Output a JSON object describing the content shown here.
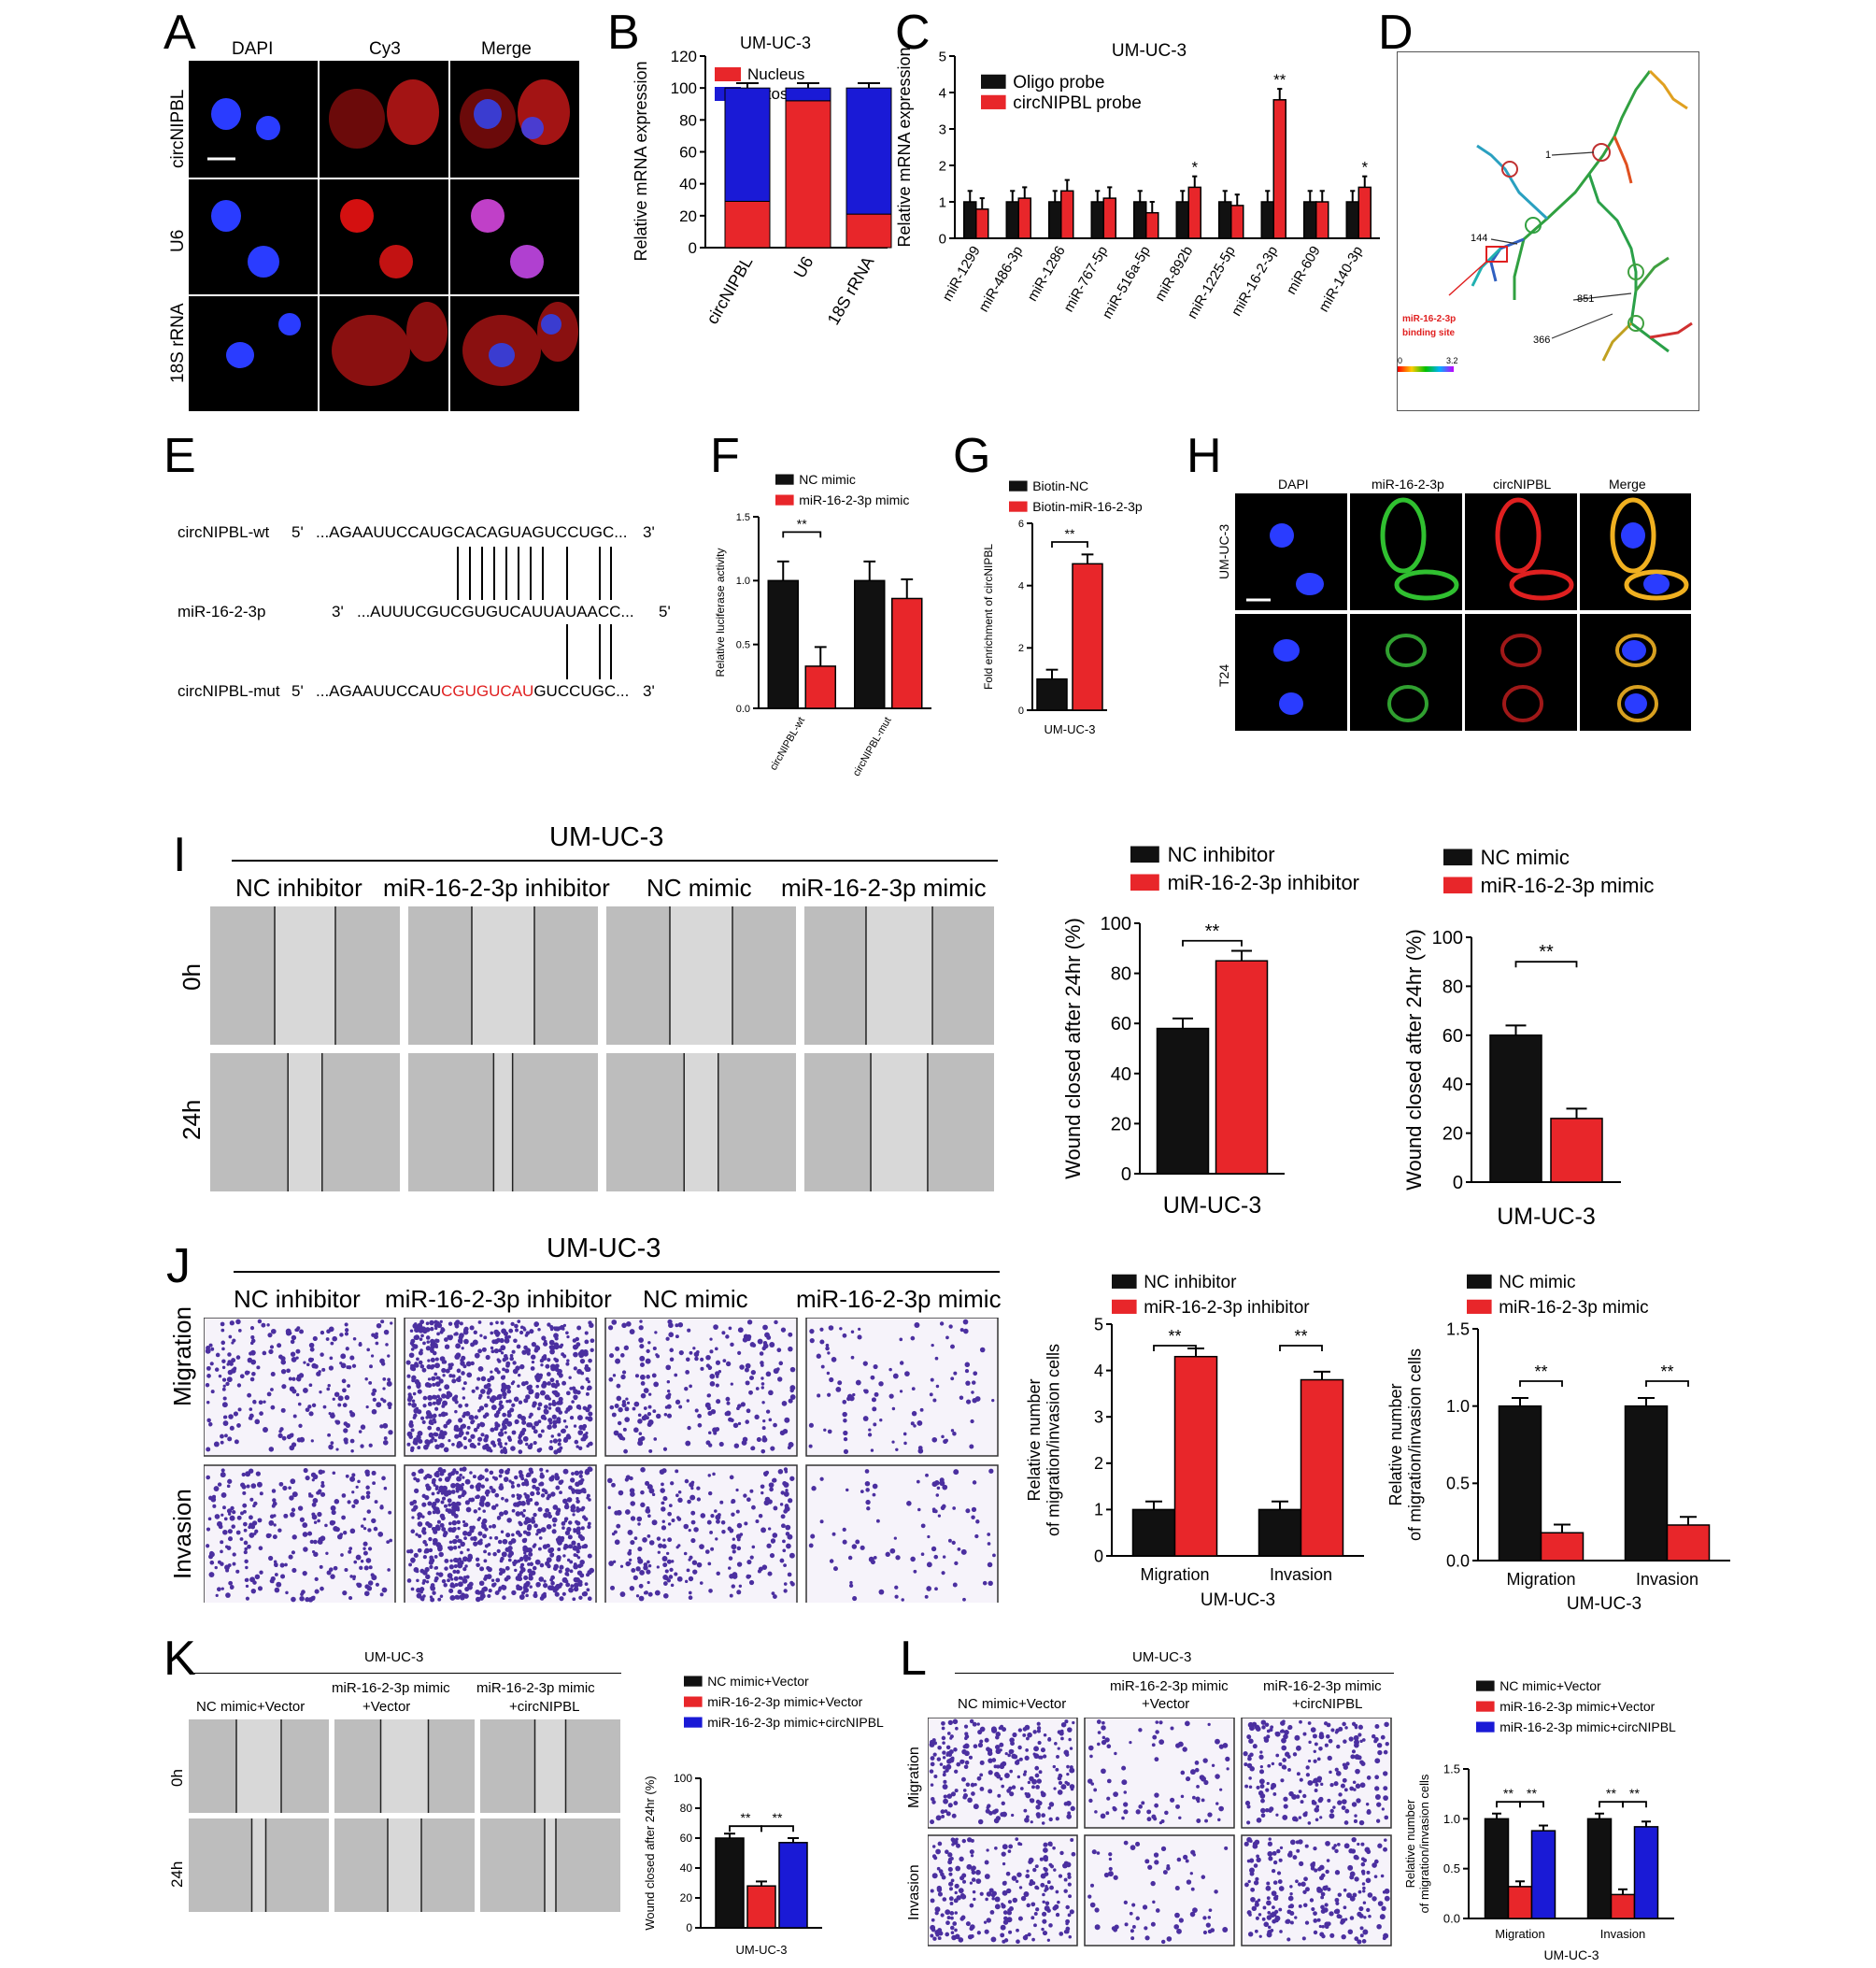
{
  "panels": {
    "A": {
      "letter": "A",
      "cols": [
        "DAPI",
        "Cy3",
        "Merge"
      ],
      "rows": [
        "circNIPBL",
        "U6",
        "18S rRNA"
      ]
    },
    "B": {
      "letter": "B"
    },
    "C": {
      "letter": "C"
    },
    "D": {
      "letter": "D",
      "labels": [
        "1",
        "144",
        "851",
        "366"
      ],
      "site": "miR-16-2-3p",
      "site2": "binding site",
      "scale_min": "0",
      "scale_max": "3.2"
    },
    "E": {
      "letter": "E",
      "wt_name": "circNIPBL-wt",
      "wt_5": "5'",
      "wt_seq": "...AGAAUUCCAUGCACAGUAGUCCUGC...",
      "wt_3": "3'",
      "mir_name": "miR-16-2-3p",
      "mir_3": "3'",
      "mir_seq": "...AUUUCGUCGUGUCAUUAUAACC...",
      "mir_5": "5'",
      "mut_name": "circNIPBL-mut",
      "mut_5": "5'",
      "mut_pre": "...AGAAUUCCAU",
      "mut_red": "CGUGUCAU",
      "mut_post": "GUCCUGC...",
      "mut_3": "3'"
    },
    "F": {
      "letter": "F"
    },
    "G": {
      "letter": "G"
    },
    "H": {
      "letter": "H",
      "cols": [
        "DAPI",
        "miR-16-2-3p",
        "circNIPBL",
        "Merge"
      ],
      "rows": [
        "UM-UC-3",
        "T24"
      ]
    },
    "I": {
      "letter": "I",
      "cell": "UM-UC-3",
      "groups": [
        "NC inhibitor",
        "miR-16-2-3p inhibitor",
        "NC mimic",
        "miR-16-2-3p mimic"
      ],
      "rows": [
        "0h",
        "24h"
      ]
    },
    "J": {
      "letter": "J",
      "cell": "UM-UC-3",
      "groups": [
        "NC inhibitor",
        "miR-16-2-3p inhibitor",
        "NC mimic",
        "miR-16-2-3p mimic"
      ],
      "rows": [
        "Migration",
        "Invasion"
      ]
    },
    "K": {
      "letter": "K",
      "cell": "UM-UC-3",
      "groups": [
        "NC mimic+Vector",
        "miR-16-2-3p mimic",
        "+Vector",
        "miR-16-2-3p mimic",
        "+circNIPBL"
      ],
      "rows": [
        "0h",
        "24h"
      ]
    },
    "L": {
      "letter": "L",
      "cell": "UM-UC-3",
      "groups": [
        "NC mimic+Vector",
        "miR-16-2-3p mimic",
        "+Vector",
        "miR-16-2-3p mimic",
        "+circNIPBL"
      ],
      "rows": [
        "Migration",
        "Invasion"
      ]
    }
  },
  "chart_data": [
    {
      "id": "B",
      "type": "bar",
      "stacked": true,
      "title": "UM-UC-3",
      "ylabel": "Relative mRNA expression",
      "categories": [
        "circNIPBL",
        "U6",
        "18S rRNA"
      ],
      "series": [
        {
          "name": "Nucleus",
          "values": [
            29,
            92,
            21
          ],
          "color": "#e8262a"
        },
        {
          "name": "Cytosol",
          "values": [
            71,
            8,
            79
          ],
          "color": "#1a1ad6"
        }
      ],
      "ylim": [
        0,
        120
      ],
      "yticks": [
        "0",
        "20",
        "40",
        "60",
        "80",
        "100",
        "120"
      ]
    },
    {
      "id": "C",
      "type": "bar",
      "title": "UM-UC-3",
      "ylabel": "Relative mRNA expression",
      "categories": [
        "miR-1299",
        "miR-486-3p",
        "miR-1286",
        "miR-767-5p",
        "miR-516a-5p",
        "miR-892b",
        "miR-1225-5p",
        "miR-16-2-3p",
        "miR-609",
        "miR-140-3p"
      ],
      "series": [
        {
          "name": "Oligo probe",
          "values": [
            1.0,
            1.0,
            1.0,
            1.0,
            1.0,
            1.0,
            1.0,
            1.0,
            1.0,
            1.0
          ],
          "color": "#111"
        },
        {
          "name": "circNIPBL probe",
          "values": [
            0.8,
            1.1,
            1.3,
            1.1,
            0.7,
            1.4,
            0.9,
            3.8,
            1.0,
            1.4
          ],
          "color": "#e8262a"
        }
      ],
      "ylim": [
        0,
        5
      ],
      "yticks": [
        "0",
        "1",
        "2",
        "3",
        "4",
        "5"
      ],
      "sig": [
        "",
        "",
        "",
        "",
        "",
        "*",
        "",
        "**",
        "",
        "*"
      ]
    },
    {
      "id": "F",
      "type": "bar",
      "ylabel": "Relative luciferase activity",
      "categories": [
        "circNIPBL-wt",
        "circNIPBL-mut"
      ],
      "series": [
        {
          "name": "NC mimic",
          "values": [
            1.0,
            1.0
          ],
          "color": "#111"
        },
        {
          "name": "miR-16-2-3p mimic",
          "values": [
            0.33,
            0.86
          ],
          "color": "#e8262a"
        }
      ],
      "ylim": [
        0,
        1.5
      ],
      "yticks": [
        "0.0",
        "0.5",
        "1.0",
        "1.5"
      ],
      "sig": "**"
    },
    {
      "id": "G",
      "type": "bar",
      "ylabel": "Fold enrichment of circNIPBL",
      "xlabel": "UM-UC-3",
      "categories": [
        "UM-UC-3"
      ],
      "series": [
        {
          "name": "Biotin-NC",
          "values": [
            1.0
          ],
          "color": "#111"
        },
        {
          "name": "Biotin-miR-16-2-3p",
          "values": [
            4.7
          ],
          "color": "#e8262a"
        }
      ],
      "ylim": [
        0,
        6
      ],
      "yticks": [
        "0",
        "2",
        "4",
        "6"
      ],
      "sig": "**"
    },
    {
      "id": "I1",
      "type": "bar",
      "ylabel": "Wound closed after 24hr (%)",
      "xlabel": "UM-UC-3",
      "series": [
        {
          "name": "NC inhibitor",
          "values": [
            58
          ],
          "color": "#111"
        },
        {
          "name": "miR-16-2-3p inhibitor",
          "values": [
            85
          ],
          "color": "#e8262a"
        }
      ],
      "ylim": [
        0,
        100
      ],
      "yticks": [
        "0",
        "20",
        "40",
        "60",
        "80",
        "100"
      ],
      "sig": "**"
    },
    {
      "id": "I2",
      "type": "bar",
      "ylabel": "Wound closed after 24hr (%)",
      "xlabel": "UM-UC-3",
      "series": [
        {
          "name": "NC mimic",
          "values": [
            60
          ],
          "color": "#111"
        },
        {
          "name": "miR-16-2-3p mimic",
          "values": [
            26
          ],
          "color": "#e8262a"
        }
      ],
      "ylim": [
        0,
        100
      ],
      "yticks": [
        "0",
        "20",
        "40",
        "60",
        "80",
        "100"
      ],
      "sig": "**"
    },
    {
      "id": "J1",
      "type": "bar",
      "ylabel": "Relative number of migration/invasion cells",
      "xlabel": "UM-UC-3",
      "categories": [
        "Migration",
        "Invasion"
      ],
      "series": [
        {
          "name": "NC inhibitor",
          "values": [
            1.0,
            1.0
          ],
          "color": "#111"
        },
        {
          "name": "miR-16-2-3p inhibitor",
          "values": [
            4.3,
            3.8
          ],
          "color": "#e8262a"
        }
      ],
      "ylim": [
        0,
        5
      ],
      "yticks": [
        "0",
        "1",
        "2",
        "3",
        "4",
        "5"
      ],
      "sig": "**"
    },
    {
      "id": "J2",
      "type": "bar",
      "ylabel": "Relative number of migration/invasion cells",
      "xlabel": "UM-UC-3",
      "categories": [
        "Migration",
        "Invasion"
      ],
      "series": [
        {
          "name": "NC mimic",
          "values": [
            1.0,
            1.0
          ],
          "color": "#111"
        },
        {
          "name": "miR-16-2-3p mimic",
          "values": [
            0.18,
            0.23
          ],
          "color": "#e8262a"
        }
      ],
      "ylim": [
        0,
        1.5
      ],
      "yticks": [
        "0.0",
        "0.5",
        "1.0",
        "1.5"
      ],
      "sig": "**"
    },
    {
      "id": "K",
      "type": "bar",
      "ylabel": "Wound closed after 24hr (%)",
      "xlabel": "UM-UC-3",
      "series": [
        {
          "name": "NC mimic+Vector",
          "values": [
            60
          ],
          "color": "#111"
        },
        {
          "name": "miR-16-2-3p mimic+Vector",
          "values": [
            28
          ],
          "color": "#e8262a"
        },
        {
          "name": "miR-16-2-3p mimic+circNIPBL",
          "values": [
            57
          ],
          "color": "#1a1ad6"
        }
      ],
      "ylim": [
        0,
        100
      ],
      "yticks": [
        "0",
        "20",
        "40",
        "60",
        "80",
        "100"
      ],
      "sig": "**"
    },
    {
      "id": "L",
      "type": "bar",
      "ylabel": "Relative number of migration/invasion cells",
      "xlabel": "UM-UC-3",
      "categories": [
        "Migration",
        "Invasion"
      ],
      "series": [
        {
          "name": "NC mimic+Vector",
          "values": [
            1.0,
            1.0
          ],
          "color": "#111"
        },
        {
          "name": "miR-16-2-3p mimic+Vector",
          "values": [
            0.32,
            0.24
          ],
          "color": "#e8262a"
        },
        {
          "name": "miR-16-2-3p mimic+circNIPBL",
          "values": [
            0.88,
            0.92
          ],
          "color": "#1a1ad6"
        }
      ],
      "ylim": [
        0,
        1.5
      ],
      "yticks": [
        "0.0",
        "0.5",
        "1.0",
        "1.5"
      ],
      "sig": "**"
    }
  ]
}
